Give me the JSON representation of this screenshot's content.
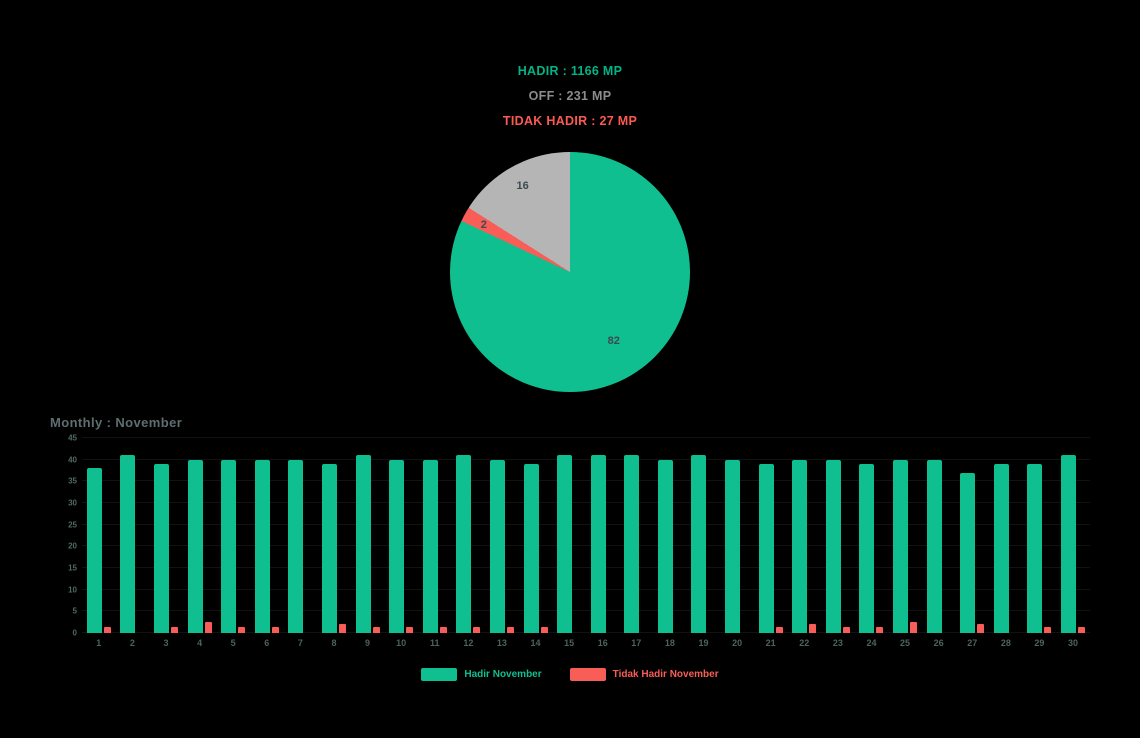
{
  "summary": {
    "lines": [
      {
        "label": "HADIR : 1166 MP",
        "color": "#00b487"
      },
      {
        "label": "OFF : 231 MP",
        "color": "#8c8c8c"
      },
      {
        "label": "TIDAK HADIR : 27 MP",
        "color": "#fb5a52"
      }
    ]
  },
  "chart_data": [
    {
      "type": "pie",
      "title": "",
      "slices": [
        {
          "name": "Hadir",
          "value": 82,
          "label": "82",
          "color": "#10bf8f"
        },
        {
          "name": "Tidak Hadir",
          "value": 2,
          "label": "2",
          "color": "#f95d57"
        },
        {
          "name": "Off",
          "value": 16,
          "label": "16",
          "color": "#b5b5b5"
        }
      ],
      "start_angle_deg": 0,
      "direction": "clockwise"
    },
    {
      "type": "bar",
      "title": "Monthly : November",
      "categories": [
        "1",
        "2",
        "3",
        "4",
        "5",
        "6",
        "7",
        "8",
        "9",
        "10",
        "11",
        "12",
        "13",
        "14",
        "15",
        "16",
        "17",
        "18",
        "19",
        "20",
        "21",
        "22",
        "23",
        "24",
        "25",
        "26",
        "27",
        "28",
        "29",
        "30"
      ],
      "series": [
        {
          "name": "Hadir November",
          "color": "#10bf8f",
          "values": [
            38,
            41,
            39,
            40,
            40,
            40,
            40,
            39,
            41,
            40,
            40,
            41,
            40,
            39,
            41,
            41,
            41,
            40,
            41,
            40,
            39,
            40,
            40,
            39,
            40,
            40,
            37,
            39,
            39,
            41
          ]
        },
        {
          "name": "Tidak Hadir November",
          "color": "#f95d57",
          "values": [
            1.5,
            0,
            1.5,
            2.5,
            1.5,
            1.5,
            0,
            2,
            1.5,
            1.5,
            1.5,
            1.5,
            1.5,
            1.5,
            0,
            0,
            0,
            0,
            0,
            0,
            1.5,
            2,
            1.5,
            1.5,
            2.5,
            0,
            2,
            0,
            1.5,
            1.5
          ]
        }
      ],
      "ylim": [
        0,
        45
      ],
      "yticks": [
        0,
        5,
        10,
        15,
        20,
        25,
        30,
        35,
        40,
        45
      ],
      "grid": true,
      "legend_position": "bottom"
    }
  ]
}
